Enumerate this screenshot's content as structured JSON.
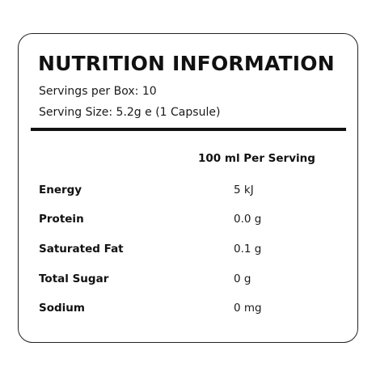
{
  "panel": {
    "title": "NUTRITION INFORMATION",
    "servings_per_box": "Servings per Box: 10",
    "serving_size": "Serving Size: 5.2g e (1 Capsule)",
    "column_header": "100 ml Per Serving",
    "rows": [
      {
        "nutrient": "Energy",
        "amount": "5 kJ"
      },
      {
        "nutrient": "Protein",
        "amount": "0.0 g"
      },
      {
        "nutrient": "Saturated Fat",
        "amount": "0.1 g"
      },
      {
        "nutrient": "Total Sugar",
        "amount": "0 g"
      },
      {
        "nutrient": "Sodium",
        "amount": "0 mg"
      }
    ]
  }
}
